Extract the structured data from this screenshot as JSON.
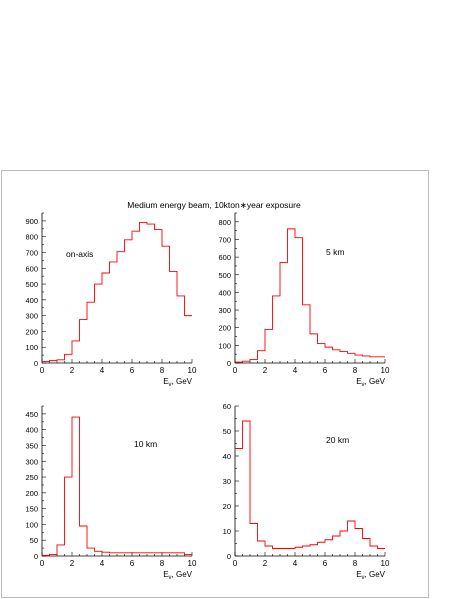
{
  "page": {
    "title": "Medium energy beam, 10kton∗year exposure"
  },
  "colors": {
    "histogram_line": "#ff0000",
    "axis": "#000000",
    "frame": "#bbbbbb"
  },
  "chart_data": [
    {
      "type": "bar",
      "style": "step-histogram",
      "annotation": "on-axis",
      "xlabel": "E_ν, GeV",
      "xlim": [
        0,
        10
      ],
      "ylim": [
        0,
        950
      ],
      "x_ticks": [
        0,
        2,
        4,
        6,
        8,
        10
      ],
      "y_ticks": [
        0,
        100,
        200,
        300,
        400,
        500,
        600,
        700,
        800,
        900
      ],
      "bin_width": 0.5,
      "values": [
        10,
        15,
        20,
        55,
        140,
        275,
        385,
        500,
        570,
        640,
        705,
        780,
        835,
        890,
        880,
        845,
        740,
        580,
        425,
        300
      ]
    },
    {
      "type": "bar",
      "style": "step-histogram",
      "annotation": "5 km",
      "xlabel": "E_ν, GeV",
      "xlim": [
        0,
        10
      ],
      "ylim": [
        0,
        850
      ],
      "x_ticks": [
        0,
        2,
        4,
        6,
        8,
        10
      ],
      "y_ticks": [
        0,
        100,
        200,
        300,
        400,
        500,
        600,
        700,
        800
      ],
      "bin_width": 0.5,
      "values": [
        5,
        10,
        20,
        70,
        190,
        380,
        570,
        760,
        710,
        330,
        165,
        110,
        90,
        75,
        65,
        55,
        45,
        40,
        35,
        35
      ]
    },
    {
      "type": "bar",
      "style": "step-histogram",
      "annotation": "10 km",
      "xlabel": "E_ν, GeV",
      "xlim": [
        0,
        10
      ],
      "ylim": [
        0,
        475
      ],
      "x_ticks": [
        0,
        2,
        4,
        6,
        8,
        10
      ],
      "y_ticks": [
        0,
        50,
        100,
        150,
        200,
        250,
        300,
        350,
        400,
        450
      ],
      "bin_width": 0.5,
      "values": [
        2,
        5,
        35,
        250,
        440,
        95,
        25,
        15,
        12,
        10,
        10,
        10,
        10,
        10,
        10,
        10,
        10,
        10,
        10,
        5
      ]
    },
    {
      "type": "bar",
      "style": "step-histogram",
      "annotation": "20 km",
      "xlabel": "E_ν, GeV",
      "xlim": [
        0,
        10
      ],
      "ylim": [
        0,
        60
      ],
      "x_ticks": [
        0,
        2,
        4,
        6,
        8,
        10
      ],
      "y_ticks": [
        0,
        10,
        20,
        30,
        40,
        50,
        60
      ],
      "bin_width": 0.5,
      "values": [
        43,
        54,
        13,
        6,
        4,
        3,
        3,
        3,
        3.5,
        4,
        4.5,
        5.5,
        6.5,
        8,
        10,
        14,
        11,
        7,
        4,
        3
      ]
    }
  ]
}
